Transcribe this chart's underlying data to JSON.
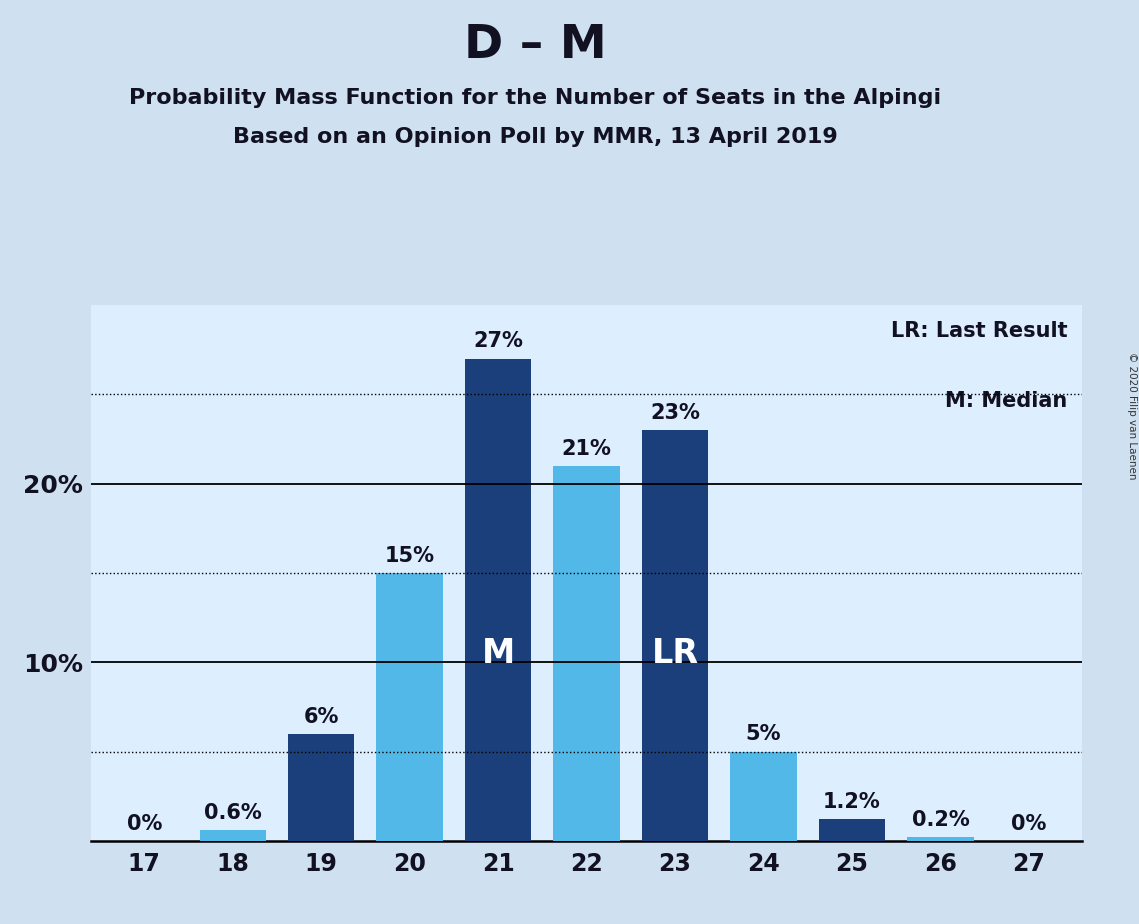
{
  "title": "D – M",
  "subtitle1": "Probability Mass Function for the Number of Seats in the Alpingi",
  "subtitle2": "Based on an Opinion Poll by MMR, 13 April 2019",
  "copyright": "© 2020 Filip van Laenen",
  "legend_lr": "LR: Last Result",
  "legend_m": "M: Median",
  "categories": [
    17,
    18,
    19,
    20,
    21,
    22,
    23,
    24,
    25,
    26,
    27
  ],
  "values": [
    0.0,
    0.6,
    6.0,
    15.0,
    27.0,
    21.0,
    23.0,
    5.0,
    1.2,
    0.2,
    0.0
  ],
  "labels": [
    "0%",
    "0.6%",
    "6%",
    "15%",
    "27%",
    "21%",
    "23%",
    "5%",
    "1.2%",
    "0.2%",
    "0%"
  ],
  "bar_colors": [
    "#52b8e8",
    "#52b8e8",
    "#1a3f7a",
    "#52b8e8",
    "#1a3f7a",
    "#52b8e8",
    "#1a3f7a",
    "#52b8e8",
    "#1a3f7a",
    "#52b8e8",
    "#52b8e8"
  ],
  "median_bar_idx": 4,
  "lr_bar_idx": 6,
  "median_label": "M",
  "lr_label": "LR",
  "background_color": "#cfe0f0",
  "plot_bg_color": "#ddeeff",
  "ylim": [
    0,
    30
  ],
  "solid_gridlines": [
    10,
    20
  ],
  "dotted_gridlines": [
    5,
    15,
    25
  ],
  "title_fontsize": 34,
  "subtitle_fontsize": 16,
  "label_fontsize": 15,
  "tick_fontsize": 17,
  "inner_label_fontsize": 24
}
